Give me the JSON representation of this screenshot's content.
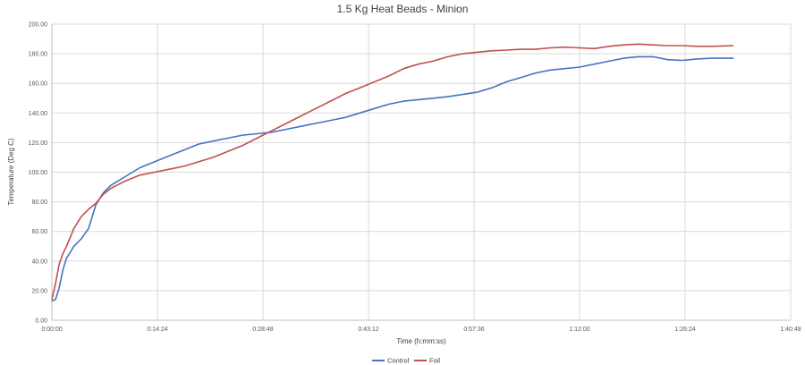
{
  "chart_data": {
    "type": "line",
    "title": "1.5 Kg Heat Beads - Minion",
    "xlabel": "Time (h:mm:ss)",
    "ylabel": "Temperature (Deg C)",
    "x_unit": "minutes",
    "xlim": [
      0,
      100.8
    ],
    "ylim": [
      0,
      200
    ],
    "x_tick_labels": [
      "0:00:00",
      "0:14:24",
      "0:28:48",
      "0:43:12",
      "0:57:36",
      "1:12:00",
      "1:26:24",
      "1:40:48"
    ],
    "y_tick_labels": [
      "0.00",
      "20.00",
      "40.00",
      "60.00",
      "80.00",
      "100.00",
      "120.00",
      "140.00",
      "160.00",
      "180.00",
      "200.00"
    ],
    "grid": true,
    "legend_position": "bottom",
    "series": [
      {
        "name": "Control",
        "color": "#4472c4",
        "points": [
          [
            0,
            13
          ],
          [
            0.5,
            14
          ],
          [
            1,
            22
          ],
          [
            1.5,
            34
          ],
          [
            2,
            42
          ],
          [
            3,
            50
          ],
          [
            4,
            55
          ],
          [
            5,
            62
          ],
          [
            6,
            78
          ],
          [
            7,
            86
          ],
          [
            8,
            91
          ],
          [
            10,
            97
          ],
          [
            12,
            103
          ],
          [
            14,
            107
          ],
          [
            16,
            111
          ],
          [
            18,
            115
          ],
          [
            20,
            119
          ],
          [
            22,
            121
          ],
          [
            24,
            123
          ],
          [
            26,
            125
          ],
          [
            28,
            126
          ],
          [
            30,
            127
          ],
          [
            32,
            129
          ],
          [
            34,
            131
          ],
          [
            36,
            133
          ],
          [
            38,
            135
          ],
          [
            40,
            137
          ],
          [
            42,
            140
          ],
          [
            44,
            143
          ],
          [
            46,
            146
          ],
          [
            48,
            148
          ],
          [
            50,
            149
          ],
          [
            52,
            150
          ],
          [
            54,
            151
          ],
          [
            56,
            152.5
          ],
          [
            58,
            154
          ],
          [
            60,
            157
          ],
          [
            62,
            161
          ],
          [
            64,
            164
          ],
          [
            66,
            167
          ],
          [
            68,
            169
          ],
          [
            70,
            170
          ],
          [
            72,
            171
          ],
          [
            74,
            173
          ],
          [
            76,
            175
          ],
          [
            78,
            177
          ],
          [
            80,
            178
          ],
          [
            82,
            178
          ],
          [
            84,
            176
          ],
          [
            86,
            175.5
          ],
          [
            88,
            176.5
          ],
          [
            90,
            177
          ],
          [
            93,
            177
          ]
        ]
      },
      {
        "name": "Foil",
        "color": "#c0504d",
        "points": [
          [
            0,
            14
          ],
          [
            0.5,
            25
          ],
          [
            1,
            38
          ],
          [
            1.5,
            45
          ],
          [
            2,
            50
          ],
          [
            3,
            62
          ],
          [
            4,
            70
          ],
          [
            5,
            75
          ],
          [
            6,
            79
          ],
          [
            7,
            85
          ],
          [
            8,
            89
          ],
          [
            10,
            94
          ],
          [
            12,
            98
          ],
          [
            14,
            100
          ],
          [
            16,
            102
          ],
          [
            18,
            104
          ],
          [
            20,
            107
          ],
          [
            22,
            110
          ],
          [
            24,
            114
          ],
          [
            26,
            118
          ],
          [
            28,
            123
          ],
          [
            30,
            128
          ],
          [
            32,
            133
          ],
          [
            34,
            138
          ],
          [
            36,
            143
          ],
          [
            38,
            148
          ],
          [
            40,
            153
          ],
          [
            42,
            157
          ],
          [
            44,
            161
          ],
          [
            46,
            165
          ],
          [
            48,
            170
          ],
          [
            50,
            173
          ],
          [
            52,
            175
          ],
          [
            54,
            178
          ],
          [
            56,
            180
          ],
          [
            58,
            181
          ],
          [
            60,
            182
          ],
          [
            62,
            182.5
          ],
          [
            64,
            183
          ],
          [
            66,
            183
          ],
          [
            68,
            184
          ],
          [
            70,
            184.5
          ],
          [
            72,
            184
          ],
          [
            74,
            183.5
          ],
          [
            76,
            185
          ],
          [
            78,
            186
          ],
          [
            80,
            186.5
          ],
          [
            82,
            186
          ],
          [
            84,
            185.5
          ],
          [
            86,
            185.5
          ],
          [
            88,
            185
          ],
          [
            90,
            185
          ],
          [
            93,
            185.5
          ]
        ]
      }
    ]
  }
}
